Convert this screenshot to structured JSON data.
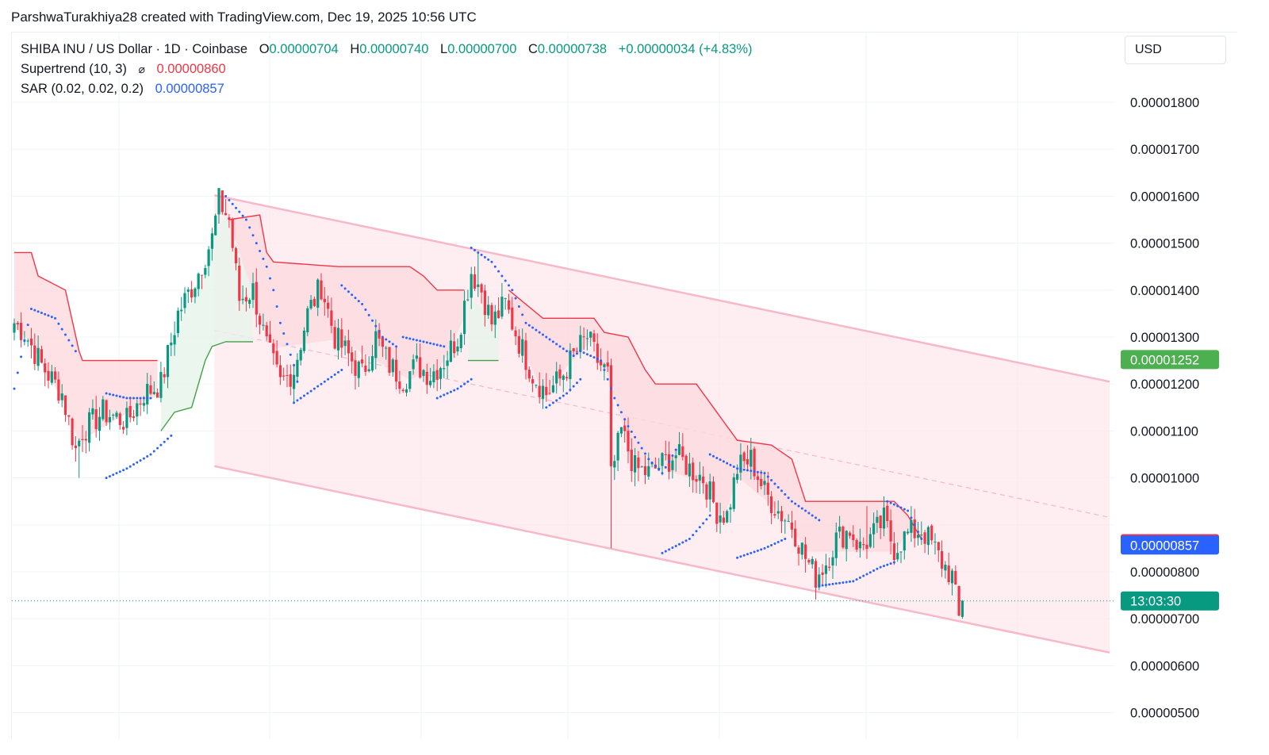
{
  "attribution": "ParshwaTurakhiya28 created with TradingView.com, Dec 19, 2025 10:56 UTC",
  "legend": {
    "symbol": "SHIBA INU / US Dollar · 1D · Coinbase",
    "o_label": "O",
    "o_value": "0.00000704",
    "h_label": "H",
    "h_value": "0.00000740",
    "l_label": "L",
    "l_value": "0.00000700",
    "c_label": "C",
    "c_value": "0.00000738",
    "change": "+0.00000034 (+4.83%)",
    "supertrend_label": "Supertrend (10, 3)",
    "supertrend_icon": "hidden-eye-icon ⌀",
    "supertrend_value": "0.00000860",
    "sar_label": "SAR (0.02, 0.02, 0.2)",
    "sar_value": "0.00000857"
  },
  "currency": "USD",
  "colors": {
    "up": "#089981",
    "down": "#f23645",
    "sar": "#2962ff",
    "channel": "#f7b8c8",
    "channel_fill": "#fde8ee",
    "supertrend_up_fill": "#e6f4ea",
    "supertrend_down_fill": "#fdd9df"
  },
  "chart_data": {
    "type": "candlestick",
    "title": "SHIBA INU / US Dollar · 1D · Coinbase",
    "y_axis": {
      "ticks": [
        "0.00001800",
        "0.00001700",
        "0.00001600",
        "0.00001500",
        "0.00001400",
        "0.00001300",
        "0.00001200",
        "0.00001100",
        "0.00001000",
        "0.00000800",
        "0.00000700",
        "0.00000600",
        "0.00000500"
      ],
      "ylim": [
        4.4e-06,
        1.91e-05
      ]
    },
    "price_labels": [
      {
        "name": "price-label-channel",
        "text": "0.00001252",
        "value": 1.252e-05,
        "color": "#4caf50"
      },
      {
        "name": "price-label-supertrend",
        "text": "0.00000860",
        "value": 8.6e-06,
        "color": "#f23645"
      },
      {
        "name": "price-label-sar",
        "text": "0.00000857",
        "value": 8.57e-06,
        "color": "#2962ff"
      },
      {
        "name": "price-label-countdown",
        "text": "13:03:30",
        "value": 7.38e-06,
        "color": "#089981"
      }
    ],
    "last_close": 7.38e-06,
    "channel": {
      "start_index": 61,
      "end_index": 315,
      "upper": [
        1.602e-05,
        1.205e-05
      ],
      "lower": [
        1.025e-05,
        6.28e-06
      ],
      "mid_start": 1.314e-05,
      "mid_end": 9.16e-06
    },
    "anchors": [
      [
        0,
        1.33e-05
      ],
      [
        3,
        1.31e-05
      ],
      [
        8,
        1.24e-05
      ],
      [
        14,
        1.18e-05
      ],
      [
        18,
        1.06e-05
      ],
      [
        20,
        1.1e-05
      ],
      [
        26,
        1.14e-05
      ],
      [
        33,
        1.12e-05
      ],
      [
        38,
        1.18e-05
      ],
      [
        43,
        1.2e-05
      ],
      [
        48,
        1.35e-05
      ],
      [
        53,
        1.42e-05
      ],
      [
        58,
        1.51e-05
      ],
      [
        60,
        1.59e-05
      ],
      [
        63,
        1.55e-05
      ],
      [
        66,
        1.38e-05
      ],
      [
        70,
        1.4e-05
      ],
      [
        74,
        1.28e-05
      ],
      [
        78,
        1.2e-05
      ],
      [
        82,
        1.23e-05
      ],
      [
        86,
        1.35e-05
      ],
      [
        90,
        1.41e-05
      ],
      [
        94,
        1.3e-05
      ],
      [
        98,
        1.26e-05
      ],
      [
        102,
        1.22e-05
      ],
      [
        106,
        1.3e-05
      ],
      [
        110,
        1.24e-05
      ],
      [
        114,
        1.21e-05
      ],
      [
        118,
        1.24e-05
      ],
      [
        122,
        1.22e-05
      ],
      [
        126,
        1.25e-05
      ],
      [
        130,
        1.3e-05
      ],
      [
        134,
        1.44e-05
      ],
      [
        137,
        1.4e-05
      ],
      [
        140,
        1.33e-05
      ],
      [
        144,
        1.37e-05
      ],
      [
        148,
        1.29e-05
      ],
      [
        152,
        1.22e-05
      ],
      [
        156,
        1.18e-05
      ],
      [
        160,
        1.21e-05
      ],
      [
        164,
        1.26e-05
      ],
      [
        168,
        1.3e-05
      ],
      [
        171,
        1.25e-05
      ],
      [
        174,
        1.22e-05
      ],
      [
        175,
        1e-05
      ],
      [
        178,
        1.1e-05
      ],
      [
        182,
        1.02e-05
      ],
      [
        186,
        1.01e-05
      ],
      [
        190,
        1.03e-05
      ],
      [
        194,
        1.05e-05
      ],
      [
        198,
        1.02e-05
      ],
      [
        202,
        1e-05
      ],
      [
        206,
        9.3e-06
      ],
      [
        209,
        9.2e-06
      ],
      [
        212,
        1.02e-05
      ],
      [
        216,
        1.04e-05
      ],
      [
        220,
        9.7e-06
      ],
      [
        224,
        9.3e-06
      ],
      [
        228,
        9e-06
      ],
      [
        232,
        8.3e-06
      ],
      [
        235,
        7.9e-06
      ],
      [
        238,
        8.2e-06
      ],
      [
        241,
        8.7e-06
      ],
      [
        245,
        8.9e-06
      ],
      [
        248,
        8.5e-06
      ],
      [
        252,
        8.8e-06
      ],
      [
        255,
        9.1e-06
      ],
      [
        258,
        8.5e-06
      ],
      [
        262,
        8.8e-06
      ],
      [
        266,
        8.9e-06
      ],
      [
        269,
        8.6e-06
      ],
      [
        272,
        8.2e-06
      ],
      [
        275,
        7.9e-06
      ],
      [
        277,
        7e-06
      ],
      [
        278,
        7.3e-06
      ]
    ],
    "candle_count": 279,
    "spikes": [
      {
        "index": 19,
        "low": 1e-05
      },
      {
        "index": 60,
        "high": 1.6e-05
      },
      {
        "index": 136,
        "high": 1.48e-05
      },
      {
        "index": 175,
        "low": 8.5e-06
      },
      {
        "index": 250,
        "high": 9.4e-06
      }
    ],
    "supertrend_down_segments": [
      [
        [
          0,
          1.48e-05
        ],
        [
          5,
          1.48e-05
        ],
        [
          7,
          1.43e-05
        ],
        [
          15,
          1.4e-05
        ],
        [
          19,
          1.27e-05
        ],
        [
          20,
          1.25e-05
        ],
        [
          42,
          1.25e-05
        ]
      ],
      [
        [
          63,
          1.55e-05
        ],
        [
          72,
          1.56e-05
        ],
        [
          74,
          1.48e-05
        ],
        [
          76,
          1.46e-05
        ],
        [
          95,
          1.45e-05
        ],
        [
          116,
          1.45e-05
        ],
        [
          120,
          1.43e-05
        ],
        [
          124,
          1.4e-05
        ],
        [
          132,
          1.4e-05
        ]
      ],
      [
        [
          145,
          1.4e-05
        ],
        [
          150,
          1.37e-05
        ],
        [
          155,
          1.34e-05
        ],
        [
          170,
          1.34e-05
        ],
        [
          173,
          1.31e-05
        ],
        [
          180,
          1.3e-05
        ],
        [
          185,
          1.23e-05
        ],
        [
          188,
          1.2e-05
        ],
        [
          200,
          1.2e-05
        ],
        [
          205,
          1.15e-05
        ],
        [
          208,
          1.12e-05
        ],
        [
          212,
          1.08e-05
        ],
        [
          222,
          1.07e-05
        ],
        [
          228,
          1.04e-05
        ],
        [
          232,
          9.5e-06
        ],
        [
          258,
          9.5e-06
        ],
        [
          262,
          9.2e-06
        ],
        [
          266,
          8.7e-06
        ]
      ]
    ],
    "supertrend_up_segments": [
      [
        [
          43,
          1.1e-05
        ],
        [
          47,
          1.14e-05
        ],
        [
          52,
          1.15e-05
        ],
        [
          56,
          1.25e-05
        ],
        [
          58,
          1.28e-05
        ],
        [
          62,
          1.29e-05
        ],
        [
          70,
          1.29e-05
        ]
      ],
      [
        [
          133,
          1.25e-05
        ],
        [
          142,
          1.25e-05
        ]
      ]
    ],
    "sar_segments": [
      [
        [
          0,
          1.19e-05
        ],
        [
          5,
          1.36e-05
        ],
        [
          12,
          1.34e-05
        ],
        [
          18,
          1.27e-05
        ]
      ],
      [
        [
          27,
          1.18e-05
        ],
        [
          33,
          1.17e-05
        ],
        [
          40,
          1.17e-05
        ]
      ],
      [
        [
          27,
          1e-05
        ],
        [
          33,
          1.02e-05
        ],
        [
          40,
          1.05e-05
        ],
        [
          46,
          1.09e-05
        ]
      ],
      [
        [
          62,
          1.6e-05
        ],
        [
          68,
          1.55e-05
        ],
        [
          74,
          1.45e-05
        ],
        [
          76,
          1.4e-05
        ],
        [
          78,
          1.33e-05
        ],
        [
          82,
          1.24e-05
        ],
        [
          84,
          1.17e-05
        ]
      ],
      [
        [
          82,
          1.16e-05
        ],
        [
          90,
          1.2e-05
        ],
        [
          96,
          1.23e-05
        ]
      ],
      [
        [
          96,
          1.41e-05
        ],
        [
          102,
          1.37e-05
        ],
        [
          108,
          1.3e-05
        ],
        [
          112,
          1.28e-05
        ]
      ],
      [
        [
          114,
          1.3e-05
        ],
        [
          120,
          1.29e-05
        ],
        [
          126,
          1.28e-05
        ]
      ],
      [
        [
          124,
          1.17e-05
        ],
        [
          130,
          1.19e-05
        ],
        [
          134,
          1.21e-05
        ]
      ],
      [
        [
          134,
          1.49e-05
        ],
        [
          140,
          1.46e-05
        ],
        [
          146,
          1.4e-05
        ],
        [
          150,
          1.33e-05
        ],
        [
          158,
          1.29e-05
        ],
        [
          164,
          1.26e-05
        ],
        [
          166,
          1.27e-05
        ]
      ],
      [
        [
          156,
          1.15e-05
        ],
        [
          162,
          1.18e-05
        ],
        [
          166,
          1.21e-05
        ]
      ],
      [
        [
          166,
          1.27e-05
        ],
        [
          172,
          1.25e-05
        ],
        [
          176,
          1.17e-05
        ],
        [
          180,
          1.11e-05
        ],
        [
          186,
          1.04e-05
        ],
        [
          190,
          1.01e-05
        ],
        [
          194,
          1.06e-05
        ]
      ],
      [
        [
          190,
          8.4e-06
        ],
        [
          198,
          8.7e-06
        ],
        [
          204,
          9.2e-06
        ]
      ],
      [
        [
          204,
          1.05e-05
        ],
        [
          212,
          1.02e-05
        ],
        [
          220,
          1.01e-05
        ],
        [
          228,
          9.5e-06
        ],
        [
          236,
          9.1e-06
        ]
      ],
      [
        [
          212,
          8.3e-06
        ],
        [
          220,
          8.5e-06
        ],
        [
          226,
          8.7e-06
        ]
      ],
      [
        [
          236,
          7.7e-06
        ],
        [
          246,
          7.8e-06
        ],
        [
          254,
          8.1e-06
        ],
        [
          258,
          8.2e-06
        ]
      ],
      [
        [
          256,
          9.5e-06
        ],
        [
          262,
          9.3e-06
        ],
        [
          266,
          8.7e-06
        ]
      ]
    ]
  }
}
